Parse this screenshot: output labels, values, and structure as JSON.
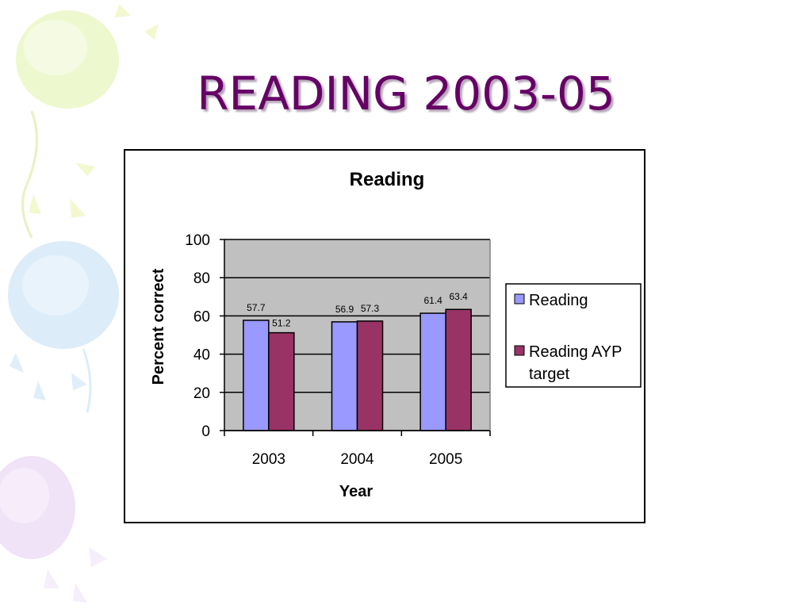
{
  "slide": {
    "title": "READING 2003-05"
  },
  "chart_data": {
    "type": "bar",
    "title": "Reading",
    "xlabel": "Year",
    "ylabel": "Percent correct",
    "categories": [
      "2003",
      "2004",
      "2005"
    ],
    "ylim": [
      0,
      100
    ],
    "yticks": [
      "0",
      "20",
      "40",
      "60",
      "80",
      "100"
    ],
    "grid": true,
    "legend_position": "right",
    "series": [
      {
        "name": "Reading",
        "values": [
          57.7,
          56.9,
          61.4
        ],
        "labels": [
          "57.7",
          "56.9",
          "61.4"
        ],
        "color": "#9999ff"
      },
      {
        "name": "Reading AYP target",
        "values": [
          51.2,
          57.3,
          63.4
        ],
        "labels": [
          "51.2",
          "57.3",
          "63.4"
        ],
        "color": "#993366"
      }
    ],
    "plot_background": "#c0c0c0"
  }
}
